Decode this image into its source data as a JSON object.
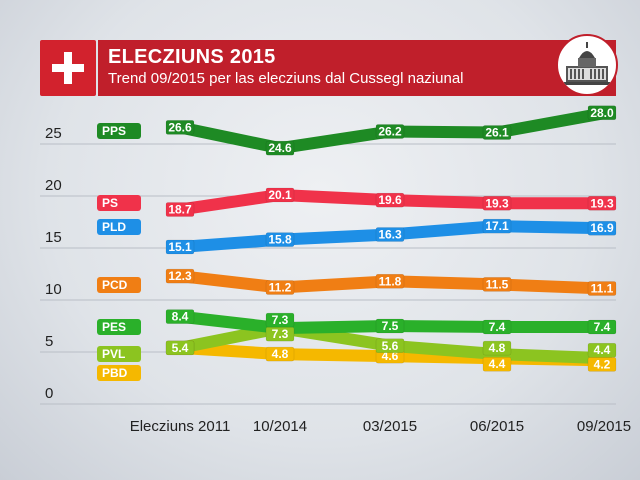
{
  "header": {
    "title": "ELECZIUNS 2015",
    "subtitle": "Trend 09/2015 per las elecziuns dal Cussegl naziunal"
  },
  "colors": {
    "banner": "#c01f2b",
    "PPS": "#1e8a24",
    "PS": "#f0324a",
    "PLD": "#1e8fe6",
    "PCD": "#f07e14",
    "PES": "#2ab02a",
    "PVL": "#8cc420",
    "PBD": "#f5b800"
  },
  "chart_data": {
    "type": "line",
    "categories": [
      "Elecziuns 2011",
      "10/2014",
      "03/2015",
      "06/2015",
      "09/2015"
    ],
    "ylim": [
      0,
      30
    ],
    "yticks": [
      0,
      5,
      10,
      15,
      20,
      25
    ],
    "series": [
      {
        "name": "PPS",
        "values": [
          26.6,
          24.6,
          26.2,
          26.1,
          28.0
        ],
        "labels": [
          "26.6",
          "24.6",
          "26.2",
          "26.1",
          "28.0"
        ]
      },
      {
        "name": "PS",
        "values": [
          18.7,
          20.1,
          19.6,
          19.3,
          19.3
        ],
        "labels": [
          "18.7",
          "20.1",
          "19.6",
          "19.3",
          "19.3"
        ]
      },
      {
        "name": "PLD",
        "values": [
          15.1,
          15.8,
          16.3,
          17.1,
          16.9
        ],
        "labels": [
          "15.1",
          "15.8",
          "16.3",
          "17.1",
          "16.9"
        ]
      },
      {
        "name": "PCD",
        "values": [
          12.3,
          11.2,
          11.8,
          11.5,
          11.1
        ],
        "labels": [
          "12.3",
          "11.2",
          "11.8",
          "11.5",
          "11.1"
        ]
      },
      {
        "name": "PES",
        "values": [
          8.4,
          7.3,
          7.5,
          7.4,
          7.4
        ],
        "labels": [
          "8.4",
          "7.3",
          "7.5",
          "7.4",
          "7.4"
        ]
      },
      {
        "name": "PVL",
        "values": [
          5.4,
          7.3,
          5.6,
          4.8,
          4.4
        ],
        "labels": [
          "5.4",
          "7.3",
          "5.6",
          "4.8",
          "4.4"
        ]
      },
      {
        "name": "PBD",
        "values": [
          5.4,
          4.8,
          4.6,
          4.4,
          4.2
        ],
        "labels": [
          "5.4",
          "4.8",
          "4.6",
          "4.4",
          "4.2"
        ]
      }
    ]
  }
}
